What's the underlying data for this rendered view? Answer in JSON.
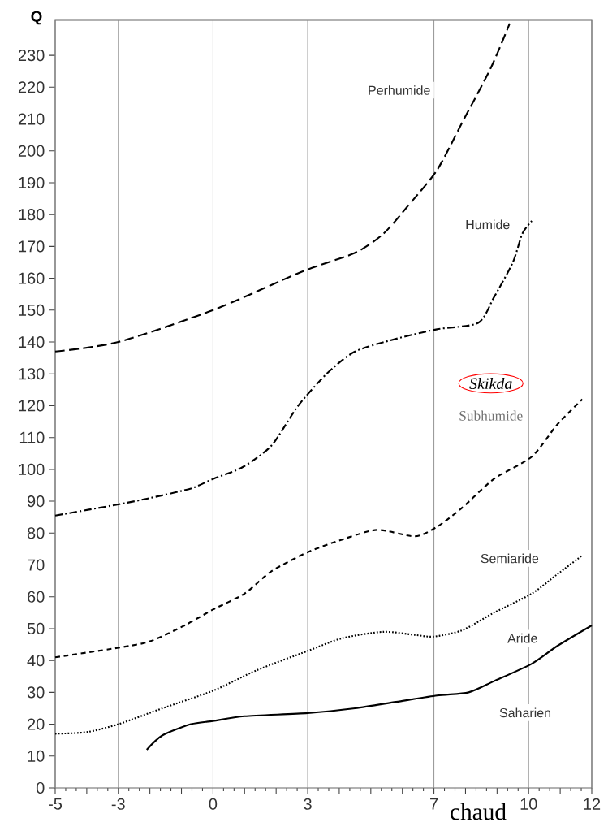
{
  "chart_data": {
    "type": "line",
    "xlabel": "chaud",
    "ylabel": "Q",
    "xlim": [
      -5,
      12
    ],
    "ylim": [
      0,
      241
    ],
    "xticks": [
      -5,
      {
        "value": -4,
        "label": null
      },
      -3,
      {
        "value": -2,
        "label": null
      },
      {
        "value": -1,
        "label": null
      },
      0,
      {
        "value": 1,
        "label": null
      },
      {
        "value": 2,
        "label": null
      },
      3,
      {
        "value": 4,
        "label": null
      },
      {
        "value": 5,
        "label": null
      },
      {
        "value": 6,
        "label": null
      },
      7,
      {
        "value": 8,
        "label": null
      },
      {
        "value": 9,
        "label": null
      },
      10,
      {
        "value": 11,
        "label": null
      },
      12
    ],
    "yticks": [
      0,
      10,
      20,
      30,
      40,
      50,
      60,
      70,
      80,
      90,
      100,
      110,
      120,
      130,
      140,
      150,
      160,
      170,
      180,
      190,
      200,
      210,
      220,
      230
    ],
    "grid": "x",
    "marker": "none",
    "series": [
      {
        "color": "#000000",
        "line_style": "dashed",
        "x": [
          -5,
          -3,
          0,
          2.8,
          4.5,
          5.4,
          6.2,
          7.1,
          7.9,
          8.8,
          9.4
        ],
        "values": [
          137,
          140,
          150,
          162,
          168,
          174,
          183,
          194,
          209,
          226,
          240
        ]
      },
      {
        "color": "#000000",
        "line_style": "dashdot",
        "x": [
          -5,
          -3,
          -2,
          -0.7,
          0,
          0.8,
          1.3,
          1.9,
          2.7,
          3.6,
          4.5,
          5.8,
          7.1,
          8.4,
          8.9,
          9.5,
          9.8,
          10.1
        ],
        "values": [
          85.5,
          89,
          91,
          94,
          97,
          100,
          103,
          108,
          120,
          130,
          137,
          141,
          144,
          146,
          154,
          165,
          174,
          178
        ]
      },
      {
        "color": "#000000",
        "line_style": "short dashed",
        "x": [
          -5,
          -3,
          -2,
          -0.9,
          0,
          1,
          1.85,
          3,
          4.1,
          5.2,
          6.4,
          7.1,
          7.9,
          8.9,
          10.1,
          10.9,
          11.7
        ],
        "values": [
          41,
          44,
          46,
          51,
          56,
          61,
          68,
          74,
          78,
          81,
          79,
          82,
          88,
          97,
          104,
          114,
          122
        ]
      },
      {
        "color": "#000000",
        "line_style": "dotted",
        "x": [
          -5,
          -4,
          -3,
          -1.6,
          0,
          1.4,
          3,
          4.1,
          5.4,
          6.4,
          7,
          7.9,
          8.9,
          10.1,
          10.9,
          11.7
        ],
        "values": [
          17,
          17.5,
          20,
          25,
          30.5,
          37,
          43,
          47,
          49,
          48,
          47.5,
          49.5,
          55,
          61,
          67,
          73
        ]
      },
      {
        "color": "#000000",
        "line_style": "solid",
        "x": [
          -2.1,
          -1.6,
          -0.7,
          0,
          1,
          3,
          4.5,
          5.8,
          7.1,
          8.1,
          8.9,
          10.1,
          10.9,
          12
        ],
        "values": [
          12,
          16.5,
          20,
          21,
          22.5,
          23.5,
          25,
          27,
          29,
          30,
          33.5,
          39,
          44.5,
          51
        ]
      }
    ],
    "annotations": [
      "Perhumide",
      "Humide",
      "Skikda",
      "Subhumide",
      "Semiaride",
      "Aride",
      "Saharien"
    ]
  }
}
